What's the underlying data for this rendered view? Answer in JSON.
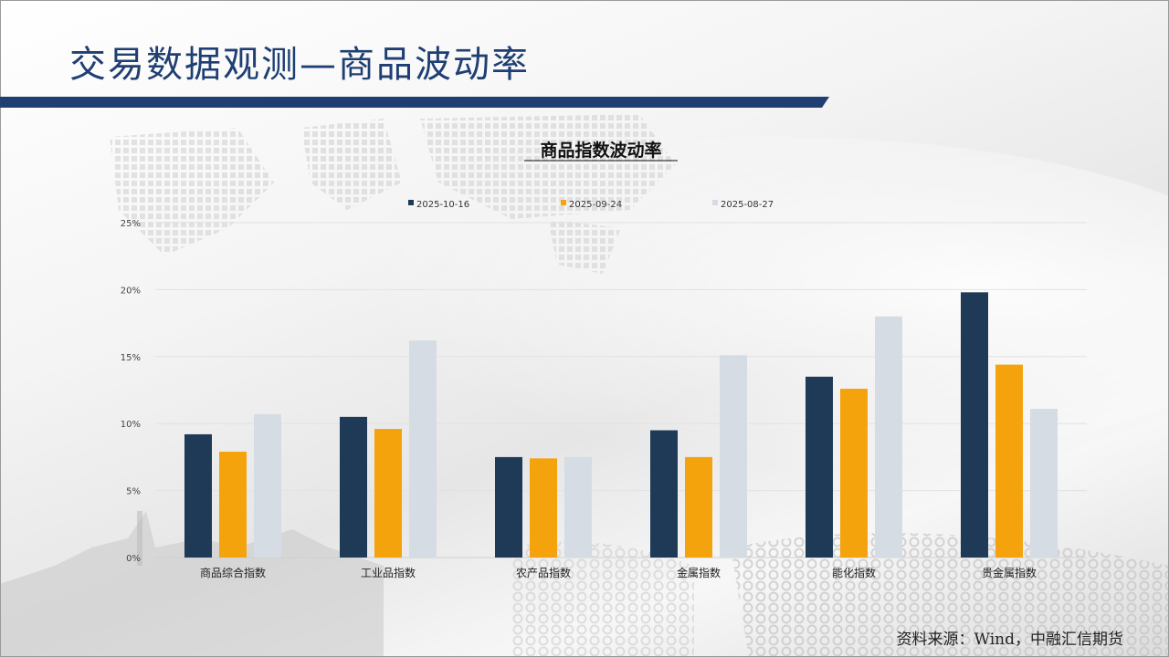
{
  "slide": {
    "title": "交易数据观测—商品波动率",
    "source": "资料来源：Wind，中融汇信期货"
  },
  "colors": {
    "title": "#1f3f73",
    "title_bar": "#1f3f73",
    "series": [
      "#1f3a56",
      "#f5a30c",
      "#d6dce4"
    ]
  },
  "chart_data": {
    "type": "bar",
    "title": "商品指数波动率",
    "categories": [
      "商品综合指数",
      "工业品指数",
      "农产品指数",
      "金属指数",
      "能化指数",
      "贵金属指数"
    ],
    "series": [
      {
        "name": "2025-10-16",
        "values": [
          9.2,
          10.5,
          7.5,
          9.5,
          13.5,
          19.8
        ]
      },
      {
        "name": "2025-09-24",
        "values": [
          7.9,
          9.6,
          7.4,
          7.5,
          12.6,
          14.4
        ]
      },
      {
        "name": "2025-08-27",
        "values": [
          10.7,
          16.2,
          7.5,
          15.1,
          18.0,
          11.1
        ]
      }
    ],
    "ylim": [
      0,
      25
    ],
    "yticks": [
      0,
      5,
      10,
      15,
      20,
      25
    ],
    "ytick_labels": [
      "0%",
      "5%",
      "10%",
      "15%",
      "20%",
      "25%"
    ],
    "grid": true,
    "legend_position": "top"
  }
}
